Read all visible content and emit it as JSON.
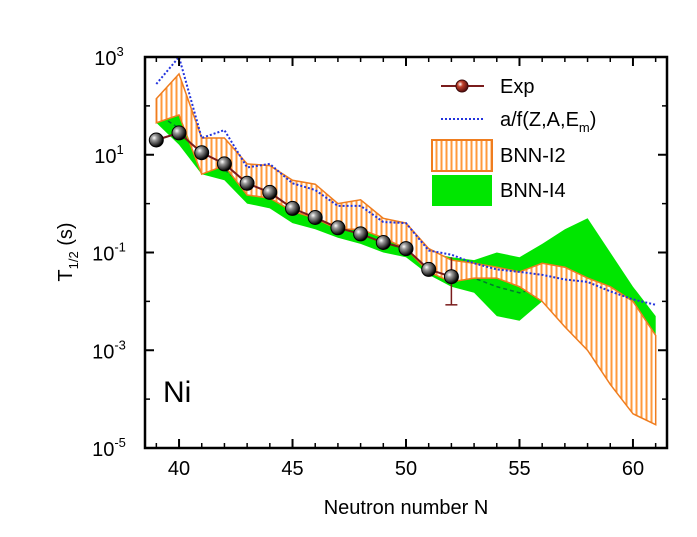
{
  "chart_data": {
    "type": "line",
    "xlabel": "Neutron number N",
    "ylabel_main": "T",
    "ylabel_sub": "1/2",
    "ylabel_unit": " (s)",
    "panel_label": "Ni",
    "xlim": [
      38.5,
      61.5
    ],
    "ylim": [
      1e-05,
      1000
    ],
    "y_scale": "log",
    "x_ticks": [
      40,
      45,
      50,
      55,
      60
    ],
    "y_ticks": [
      {
        "value": 1e-05,
        "base": "10",
        "exp": "-5"
      },
      {
        "value": 0.001,
        "base": "10",
        "exp": "-3"
      },
      {
        "value": 0.1,
        "base": "10",
        "exp": "-1"
      },
      {
        "value": 10,
        "base": "10",
        "exp": "1"
      },
      {
        "value": 1000,
        "base": "10",
        "exp": "3"
      }
    ],
    "legend": [
      {
        "key": "exp",
        "label": "Exp"
      },
      {
        "key": "af",
        "label_pre": "a/f(Z,A,E",
        "label_sub": "m",
        "label_post": ")"
      },
      {
        "key": "i2",
        "label": "BNN-I2"
      },
      {
        "key": "i4",
        "label": "BNN-I4"
      }
    ],
    "colors": {
      "exp": "#7a1c1c",
      "af": "#2233dd",
      "i2_fill": "#ff9a3c",
      "i2_edge": "#ef7d1f",
      "i4": "#00e600",
      "i4_line": "#007a2e"
    },
    "series": [
      {
        "name": "Exp",
        "x": [
          39,
          40,
          41,
          42,
          43,
          44,
          45,
          46,
          47,
          48,
          49,
          50,
          51,
          52
        ],
        "y": [
          20,
          28,
          11,
          6.5,
          2.6,
          1.7,
          0.8,
          0.52,
          0.32,
          0.24,
          0.16,
          0.12,
          0.045,
          0.032
        ],
        "error_low": [
          null,
          null,
          null,
          null,
          null,
          null,
          null,
          null,
          null,
          null,
          null,
          null,
          null,
          0.0085
        ],
        "error_high": [
          null,
          null,
          null,
          null,
          null,
          null,
          null,
          null,
          null,
          null,
          null,
          null,
          null,
          0.08
        ]
      },
      {
        "name": "a/f(Z,A,E_m)",
        "x": [
          39,
          40,
          41,
          42,
          43,
          44,
          45,
          46,
          47,
          48,
          49,
          50,
          51,
          52,
          53,
          54,
          55,
          56,
          57,
          58,
          59,
          60,
          61
        ],
        "y": [
          280,
          1000,
          22,
          32,
          5.5,
          6.5,
          2.6,
          1.9,
          0.9,
          0.9,
          0.42,
          0.4,
          0.11,
          0.09,
          0.06,
          0.045,
          0.04,
          0.035,
          0.028,
          0.025,
          0.016,
          0.011,
          0.0085
        ]
      },
      {
        "name": "BNN-I2",
        "x": [
          39,
          40,
          41,
          42,
          43,
          44,
          45,
          46,
          47,
          48,
          49,
          50,
          51,
          52,
          53,
          54,
          55,
          56,
          57,
          58,
          59,
          60,
          61
        ],
        "y_low": [
          45,
          65,
          4,
          6,
          1.5,
          1.3,
          0.7,
          0.5,
          0.3,
          0.3,
          0.2,
          0.12,
          0.04,
          0.025,
          0.03,
          0.03,
          0.02,
          0.01,
          0.003,
          0.001,
          0.0002,
          5e-05,
          3e-05
        ],
        "y_high": [
          140,
          450,
          22,
          22,
          6.5,
          6,
          3,
          2.5,
          1,
          1.2,
          0.5,
          0.4,
          0.12,
          0.07,
          0.06,
          0.05,
          0.04,
          0.06,
          0.05,
          0.03,
          0.02,
          0.01,
          0.002
        ]
      },
      {
        "name": "BNN-I4",
        "x": [
          39,
          40,
          41,
          42,
          43,
          44,
          45,
          46,
          47,
          48,
          49,
          50,
          51,
          52,
          53,
          54,
          55,
          56,
          57,
          58,
          59,
          60,
          61
        ],
        "y_low": [
          45,
          16,
          4,
          3,
          1,
          0.8,
          0.4,
          0.3,
          0.2,
          0.15,
          0.1,
          0.08,
          0.035,
          0.02,
          0.015,
          0.005,
          0.004,
          0.01,
          0.008,
          0.005,
          0.0015,
          0.0003,
          0.0001
        ],
        "y_mid": [
          70,
          35,
          8,
          5,
          2,
          1.6,
          0.9,
          0.65,
          0.45,
          0.35,
          0.22,
          0.18,
          0.065,
          0.04,
          0.03,
          0.02,
          0.015,
          0.02,
          0.018,
          0.012,
          0.004,
          0.002,
          0.001
        ],
        "y_high": [
          120,
          70,
          15,
          8,
          3.5,
          3,
          1.8,
          1.2,
          0.8,
          0.6,
          0.4,
          0.3,
          0.1,
          0.08,
          0.07,
          0.1,
          0.08,
          0.15,
          0.3,
          0.5,
          0.1,
          0.02,
          0.005
        ]
      }
    ]
  }
}
